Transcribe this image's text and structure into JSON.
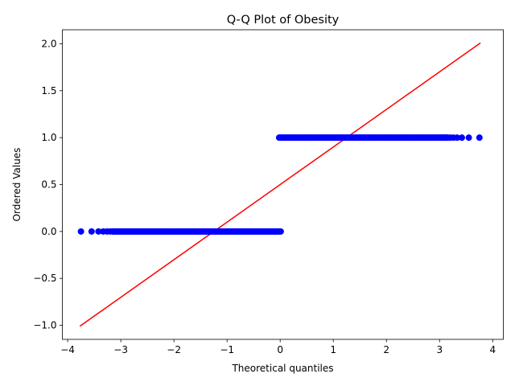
{
  "chart_data": {
    "type": "scatter",
    "title": "Q-Q Plot of Obesity",
    "xlabel": "Theoretical quantiles",
    "ylabel": "Ordered Values",
    "xlim": [
      -4.1,
      4.2
    ],
    "ylim": [
      -1.15,
      2.15
    ],
    "xticks": [
      -4,
      -3,
      -2,
      -1,
      0,
      1,
      2,
      3,
      4
    ],
    "xtick_labels": [
      "−4",
      "−3",
      "−2",
      "−1",
      "0",
      "1",
      "2",
      "3",
      "4"
    ],
    "yticks": [
      -1.0,
      -0.5,
      0.0,
      0.5,
      1.0,
      1.5,
      2.0
    ],
    "ytick_labels": [
      "−1.0",
      "−0.5",
      "0.0",
      "0.5",
      "1.0",
      "1.5",
      "2.0"
    ],
    "grid": false,
    "series": [
      {
        "kind": "points",
        "color": "#0000ff",
        "groups": [
          {
            "y": 0,
            "x_range": [
              -3.75,
              0.02
            ],
            "sparse_x": [
              -3.75,
              -3.55,
              -3.42,
              -3.33,
              -3.26,
              -3.2,
              -3.15
            ]
          },
          {
            "y": 1,
            "x_range": [
              -0.02,
              3.75
            ],
            "sparse_x": [
              3.15,
              3.2,
              3.26,
              3.33,
              3.42,
              3.55,
              3.75
            ]
          }
        ]
      },
      {
        "kind": "fit-line",
        "color": "#ff0000",
        "x": [
          -3.77,
          3.77
        ],
        "y": [
          -1.01,
          2.01
        ]
      }
    ]
  }
}
